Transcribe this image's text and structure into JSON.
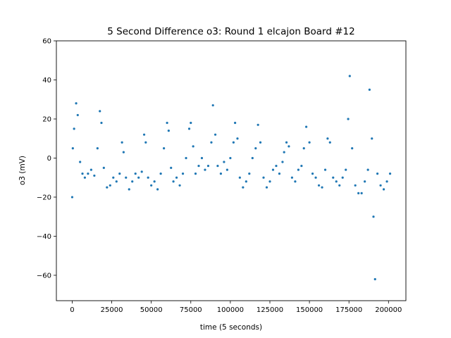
{
  "chart_data": {
    "type": "scatter",
    "title": "5 Second Difference o3: Round 1 elcajon Board #12",
    "xlabel": "time (5 seconds)",
    "ylabel": "o3 (mV)",
    "xlim": [
      -10000,
      211000
    ],
    "ylim": [
      -73,
      60
    ],
    "x_ticks": [
      0,
      25000,
      50000,
      75000,
      100000,
      125000,
      150000,
      175000,
      200000
    ],
    "y_ticks": [
      -60,
      -40,
      -20,
      0,
      20,
      40,
      60
    ],
    "grid": false,
    "legend": "none",
    "marker": "point",
    "color": "#1f77b4",
    "series": [
      {
        "x": [
          0,
          400,
          1200,
          2500,
          3500,
          5000,
          6500,
          8000,
          10000,
          12000,
          14000,
          16000,
          17500,
          18500,
          20000,
          22000,
          24000,
          26000,
          28000,
          30000,
          31500,
          32500,
          34000,
          36000,
          38000,
          40000,
          42000,
          44000,
          45500,
          46500,
          48000,
          50000,
          52000,
          54000,
          56000,
          58000,
          60000,
          61000,
          62500,
          64000,
          66000,
          68000,
          70000,
          72000,
          74000,
          75000,
          76500,
          78000,
          80000,
          82000,
          84000,
          86000,
          88000,
          89000,
          90500,
          92000,
          94000,
          96000,
          98000,
          100000,
          102000,
          103000,
          104500,
          106000,
          108000,
          110000,
          112000,
          114000,
          116000,
          117500,
          119000,
          121000,
          123000,
          125000,
          127000,
          129000,
          131000,
          133000,
          134000,
          135500,
          137000,
          139000,
          141000,
          143000,
          145000,
          146500,
          148000,
          150000,
          152000,
          154000,
          156000,
          158000,
          160000,
          161500,
          163000,
          165000,
          167000,
          169000,
          171000,
          173000,
          174500,
          175500,
          177000,
          179000,
          181000,
          183000,
          185000,
          187000,
          188000,
          189500,
          190500,
          191500,
          193000,
          195000,
          197000,
          199000,
          201000
        ],
        "y": [
          -20,
          5,
          15,
          28,
          22,
          -2,
          -8,
          -10,
          -8,
          -6,
          -9,
          5,
          24,
          18,
          -5,
          -15,
          -14,
          -10,
          -12,
          -8,
          8,
          3,
          -10,
          -16,
          -12,
          -8,
          -10,
          -7,
          12,
          8,
          -10,
          -14,
          -12,
          -16,
          -8,
          5,
          18,
          14,
          -5,
          -12,
          -10,
          -14,
          -8,
          0,
          15,
          18,
          6,
          -8,
          -4,
          0,
          -6,
          -4,
          8,
          27,
          12,
          -4,
          -8,
          -2,
          -6,
          0,
          8,
          18,
          10,
          -10,
          -15,
          -12,
          -8,
          0,
          5,
          17,
          8,
          -10,
          -15,
          -12,
          -6,
          -4,
          -8,
          -2,
          3,
          8,
          6,
          -10,
          -12,
          -6,
          -4,
          5,
          16,
          8,
          -8,
          -10,
          -14,
          -15,
          -6,
          10,
          8,
          -10,
          -12,
          -14,
          -10,
          -6,
          20,
          42,
          5,
          -14,
          -18,
          -18,
          -12,
          -6,
          35,
          10,
          -30,
          -62,
          -8,
          -14,
          -16,
          -12,
          -8
        ]
      }
    ]
  }
}
